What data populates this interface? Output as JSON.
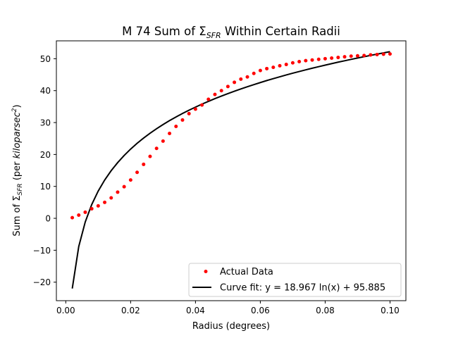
{
  "chart_data": {
    "type": "scatter",
    "title": "M 74 Sum of Σ",
    "title_sub": "SFR",
    "title_rest": " Within Certain Radii",
    "xlabel": "Radius (degrees)",
    "ylabel_prefix": "Sum of Σ",
    "ylabel_sub": "SFR",
    "ylabel_mid": " (per ",
    "ylabel_unit": "kiloparsec",
    "ylabel_sup": "2",
    "ylabel_suffix": ")",
    "xlim": [
      -0.0029,
      0.1049
    ],
    "ylim": [
      -25.8,
      55.6
    ],
    "xticks": [
      0.0,
      0.02,
      0.04,
      0.06,
      0.08,
      0.1
    ],
    "xtick_labels": [
      "0.00",
      "0.02",
      "0.04",
      "0.06",
      "0.08",
      "0.10"
    ],
    "yticks": [
      -20,
      -10,
      0,
      10,
      20,
      30,
      40,
      50
    ],
    "ytick_labels": [
      "−20",
      "−10",
      "0",
      "10",
      "20",
      "30",
      "40",
      "50"
    ],
    "grid": false,
    "legend_position": "bottom-right",
    "series": [
      {
        "name": "Actual Data",
        "kind": "scatter",
        "color": "#ff0000",
        "x": [
          0.002,
          0.004,
          0.006,
          0.008,
          0.01,
          0.012,
          0.014,
          0.016,
          0.018,
          0.02,
          0.022,
          0.024,
          0.026,
          0.028,
          0.03,
          0.032,
          0.034,
          0.036,
          0.038,
          0.04,
          0.042,
          0.044,
          0.046,
          0.048,
          0.05,
          0.052,
          0.054,
          0.056,
          0.058,
          0.06,
          0.062,
          0.064,
          0.066,
          0.068,
          0.07,
          0.072,
          0.074,
          0.076,
          0.078,
          0.08,
          0.082,
          0.084,
          0.086,
          0.088,
          0.09,
          0.092,
          0.094,
          0.096,
          0.098,
          0.1
        ],
        "y": [
          0.2,
          1.0,
          1.9,
          3.0,
          3.9,
          5.0,
          6.4,
          8.2,
          9.9,
          12.0,
          14.4,
          16.9,
          19.4,
          21.9,
          24.2,
          26.6,
          28.8,
          30.8,
          32.8,
          34.2,
          35.5,
          37.3,
          38.8,
          40.0,
          41.3,
          42.6,
          43.6,
          44.3,
          45.4,
          46.3,
          46.9,
          47.3,
          47.8,
          48.2,
          48.7,
          49.1,
          49.4,
          49.6,
          49.8,
          50.0,
          50.2,
          50.4,
          50.6,
          50.8,
          50.9,
          51.0,
          51.2,
          51.3,
          51.4,
          51.5
        ]
      },
      {
        "name": "Curve fit: y = 18.967 ln(x) + 95.885",
        "kind": "line",
        "color": "#000000",
        "x": [
          0.002,
          0.004,
          0.006,
          0.008,
          0.01,
          0.012,
          0.014,
          0.016,
          0.018,
          0.02,
          0.022,
          0.024,
          0.026,
          0.028,
          0.03,
          0.032,
          0.034,
          0.036,
          0.038,
          0.04,
          0.042,
          0.044,
          0.046,
          0.048,
          0.05,
          0.052,
          0.054,
          0.056,
          0.058,
          0.06,
          0.062,
          0.064,
          0.066,
          0.068,
          0.07,
          0.072,
          0.074,
          0.076,
          0.078,
          0.08,
          0.082,
          0.084,
          0.086,
          0.088,
          0.09,
          0.092,
          0.094,
          0.096,
          0.098,
          0.1
        ],
        "y": [
          -21.99,
          -8.84,
          -1.15,
          4.31,
          8.54,
          12.0,
          14.92,
          17.45,
          19.69,
          21.69,
          23.5,
          25.15,
          26.67,
          28.07,
          29.38,
          30.61,
          31.76,
          32.84,
          33.87,
          34.84,
          35.77,
          36.65,
          37.49,
          38.3,
          39.07,
          39.82,
          40.53,
          41.22,
          41.89,
          42.53,
          43.16,
          43.76,
          44.34,
          44.91,
          45.46,
          45.99,
          46.52,
          47.02,
          47.51,
          47.99,
          48.46,
          48.92,
          49.36,
          49.8,
          50.22,
          50.64,
          51.04,
          51.44,
          51.83,
          52.21
        ]
      }
    ]
  }
}
